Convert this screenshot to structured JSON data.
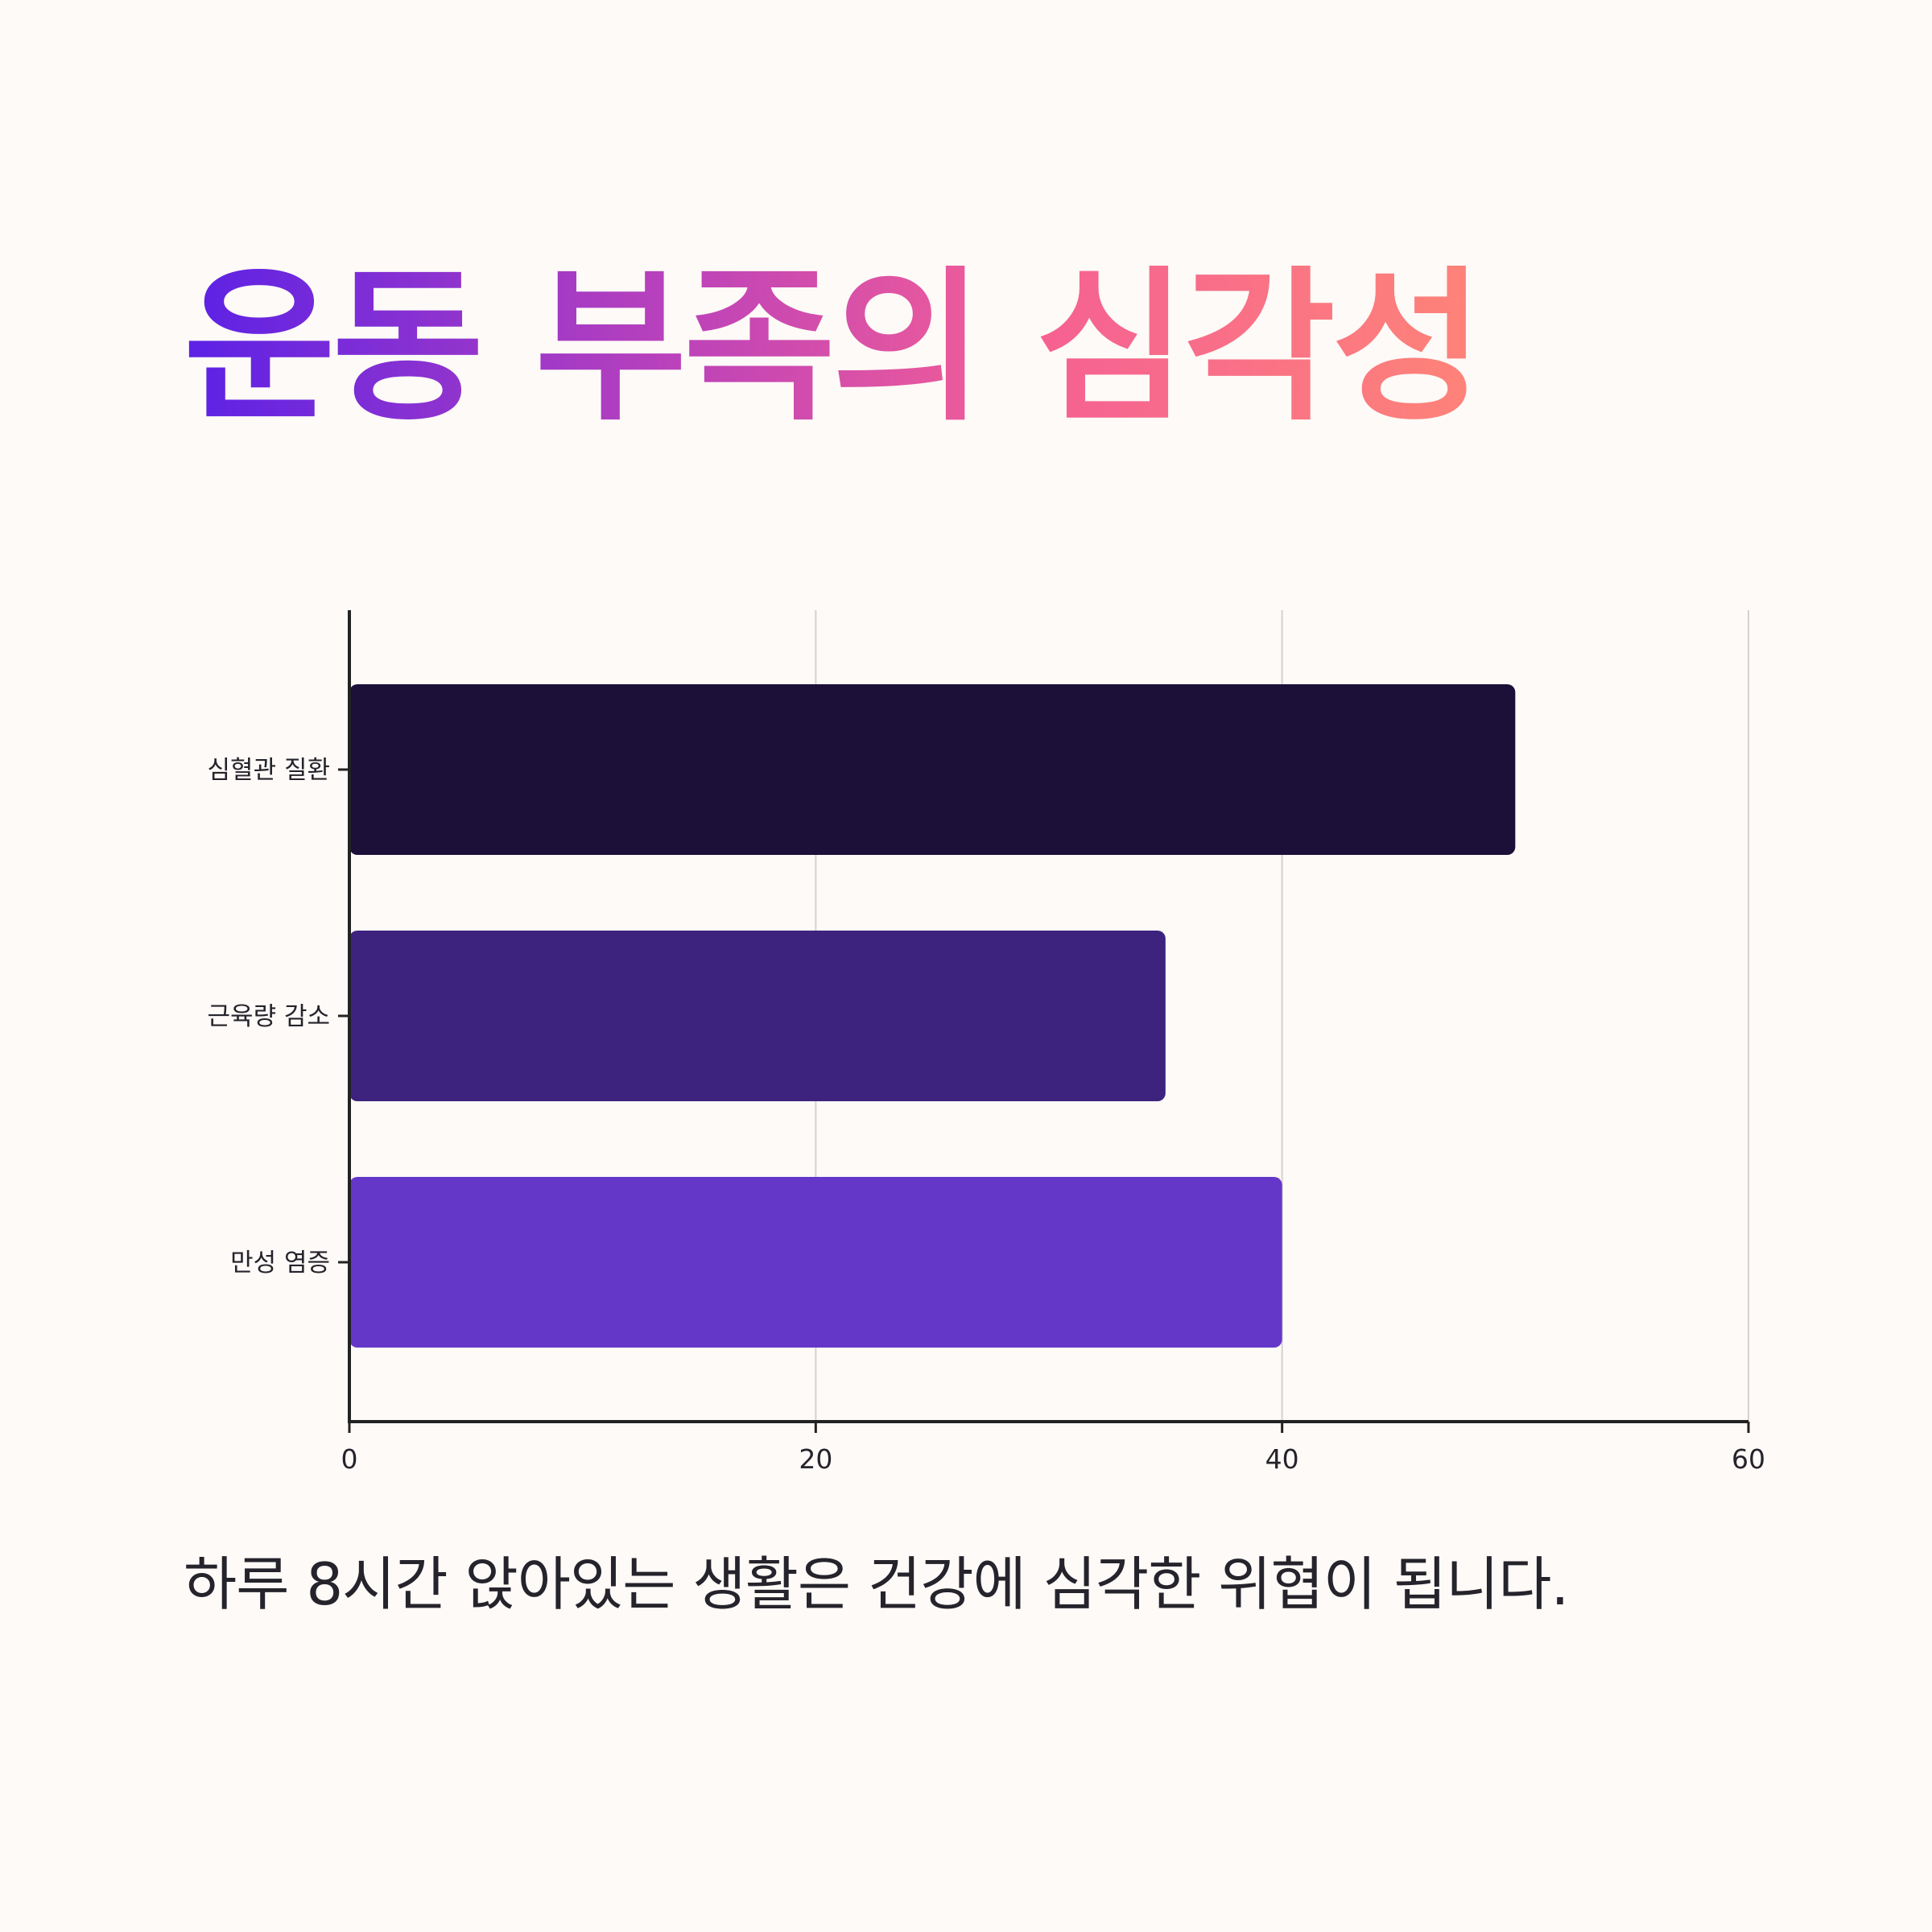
{
  "title": "운동 부족의 심각성",
  "subtitle": "하루 8시간 앉아있는 생활은 건강에 심각한 위협이 됩니다.",
  "colors": {
    "background": "#fdfaf7",
    "title_gradient": [
      "#5b21e6",
      "#c044b8",
      "#f55f94",
      "#fe8478"
    ],
    "axis": "#222222",
    "grid": "#d4d2d0",
    "text": "#25232b"
  },
  "chart_data": {
    "type": "bar",
    "orientation": "horizontal",
    "categories": [
      "심혈관 질환",
      "근육량 감소",
      "만성 염증"
    ],
    "values": [
      50,
      35,
      40
    ],
    "bar_colors": [
      "#1c1039",
      "#3d237e",
      "#6437c8"
    ],
    "xlim": [
      0,
      60
    ],
    "xticks": [
      "0",
      "20",
      "40",
      "60"
    ],
    "grid": "vertical",
    "legend": "none",
    "xlabel": "",
    "ylabel": ""
  }
}
